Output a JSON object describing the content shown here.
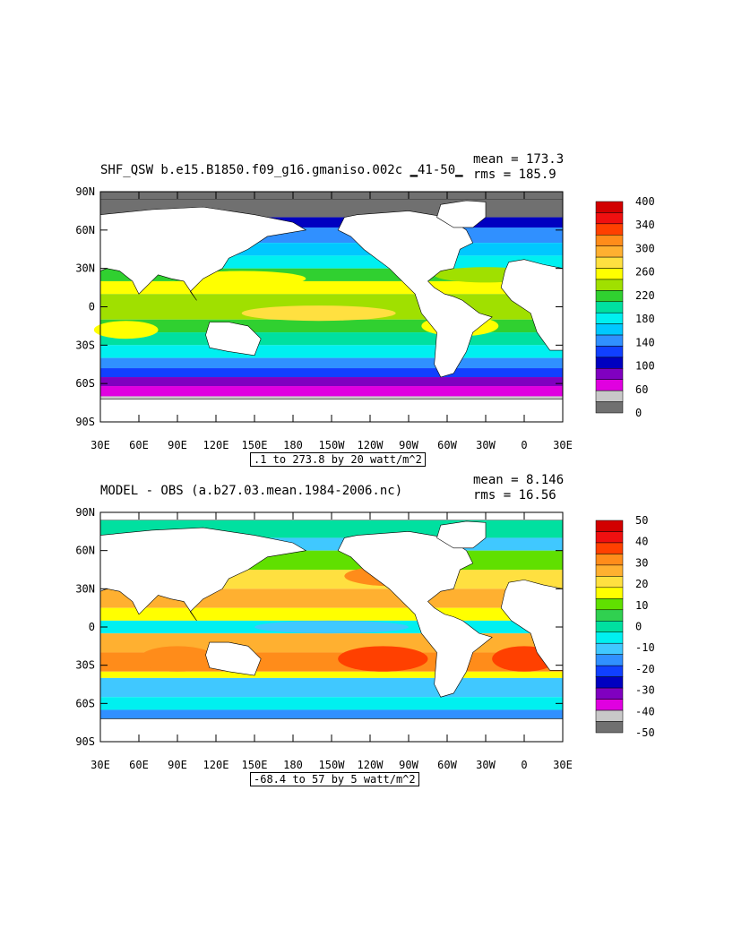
{
  "map_data": {
    "projection": "cylindrical-equidistant",
    "lon_range": [
      "30E",
      "30E"
    ],
    "lat_range": [
      "90S",
      "90N"
    ],
    "lat_ticks": [
      "90N",
      "60N",
      "30N",
      "0",
      "30S",
      "60S",
      "90S"
    ],
    "lon_ticks": [
      "30E",
      "60E",
      "90E",
      "120E",
      "150E",
      "180",
      "150W",
      "120W",
      "90W",
      "60W",
      "30W",
      "0",
      "30E"
    ],
    "land_color": "#ffffff",
    "panels": [
      {
        "title": "SHF_QSW b.e15.B1850.f09_g16.gmaniso.002c ▁41-50▁",
        "mean": "mean = 173.3",
        "rms": "rms = 185.9",
        "range_text": ".1 to 273.8 by 20 watt/m^2",
        "colorbar": {
          "labels": [
            "400",
            "340",
            "300",
            "260",
            "220",
            "180",
            "140",
            "100",
            "60",
            "0"
          ],
          "colors": [
            "#d20000",
            "#f01010",
            "#ff4000",
            "#ff8c1a",
            "#ffb030",
            "#ffe040",
            "#ffff00",
            "#a0e000",
            "#30d030",
            "#00e0a0",
            "#00f0f0",
            "#00c8ff",
            "#3090ff",
            "#1040ff",
            "#0000c0",
            "#8000c0",
            "#e000e0",
            "#c8c8c8",
            "#707070"
          ]
        }
      },
      {
        "title": "MODEL - OBS (a.b27.03.mean.1984-2006.nc)",
        "mean": "mean = 8.146",
        "rms": "rms = 16.56",
        "range_text": "-68.4 to 57 by 5 watt/m^2",
        "colorbar": {
          "labels": [
            "50",
            "40",
            "30",
            "20",
            "10",
            "0",
            "-10",
            "-20",
            "-30",
            "-40",
            "-50"
          ],
          "colors": [
            "#d20000",
            "#f01010",
            "#ff4000",
            "#ff8c1a",
            "#ffb030",
            "#ffe040",
            "#ffff00",
            "#60e000",
            "#30d050",
            "#00e0a0",
            "#00f0f0",
            "#40c8ff",
            "#3090ff",
            "#1040ff",
            "#0000c0",
            "#8000c0",
            "#e000e0",
            "#c8c8c8",
            "#707070"
          ]
        }
      }
    ]
  }
}
